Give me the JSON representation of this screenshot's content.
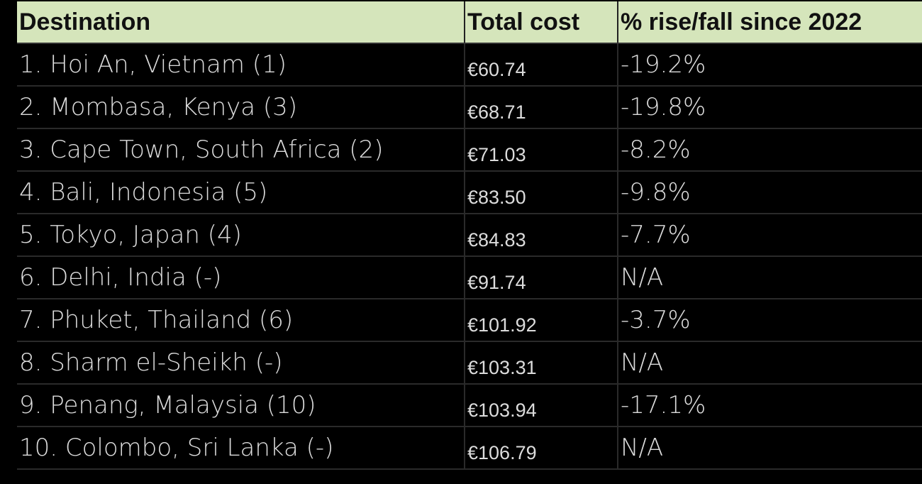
{
  "table": {
    "headers": [
      "Destination",
      "Total cost",
      "% rise/fall since 2022"
    ],
    "rows": [
      [
        "1. Hoi An, Vietnam (1)",
        "€60.74",
        "-19.2%"
      ],
      [
        "2. Mombasa, Kenya (3)",
        "€68.71",
        "-19.8%"
      ],
      [
        "3. Cape Town, South Africa (2)",
        "€71.03",
        "-8.2%"
      ],
      [
        "4. Bali, Indonesia (5)",
        "€83.50",
        "-9.8%"
      ],
      [
        "5. Tokyo, Japan (4)",
        "€84.83",
        "-7.7%"
      ],
      [
        "6. Delhi, India (-)",
        "€91.74",
        "N/A"
      ],
      [
        "7. Phuket, Thailand (6)",
        "€101.92",
        "-3.7%"
      ],
      [
        "8. Sharm el-Sheikh (-)",
        "€103.31",
        "N/A"
      ],
      [
        "9. Penang, Malaysia (10)",
        "€103.94",
        "-17.1%"
      ],
      [
        "10. Colombo, Sri Lanka (-)",
        "€106.79",
        "N/A"
      ]
    ]
  },
  "colors": {
    "header_bg": "#d5e5bb",
    "body_bg": "#000000",
    "text": "#dcdcdc"
  }
}
